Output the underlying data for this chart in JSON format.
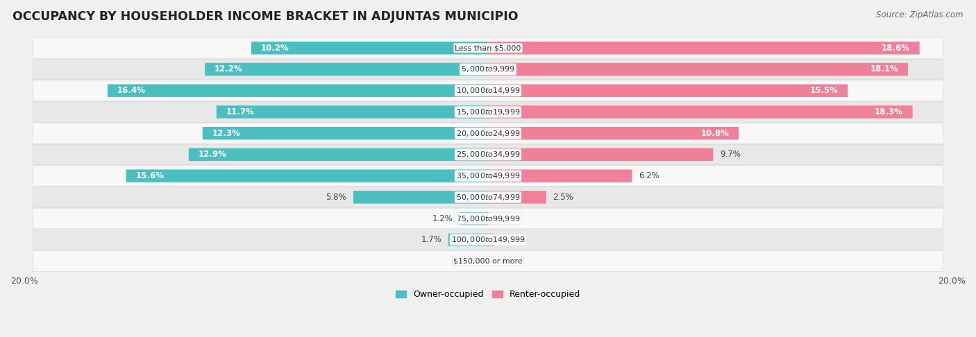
{
  "title": "OCCUPANCY BY HOUSEHOLDER INCOME BRACKET IN ADJUNTAS MUNICIPIO",
  "source": "Source: ZipAtlas.com",
  "categories": [
    "Less than $5,000",
    "$5,000 to $9,999",
    "$10,000 to $14,999",
    "$15,000 to $19,999",
    "$20,000 to $24,999",
    "$25,000 to $34,999",
    "$35,000 to $49,999",
    "$50,000 to $74,999",
    "$75,000 to $99,999",
    "$100,000 to $149,999",
    "$150,000 or more"
  ],
  "owner_values": [
    10.2,
    12.2,
    16.4,
    11.7,
    12.3,
    12.9,
    15.6,
    5.8,
    1.2,
    1.7,
    0.0
  ],
  "renter_values": [
    18.6,
    18.1,
    15.5,
    18.3,
    10.8,
    9.7,
    6.2,
    2.5,
    0.0,
    0.24,
    0.0
  ],
  "owner_color": "#4bbfbf",
  "renter_color": "#f08098",
  "owner_label": "Owner-occupied",
  "renter_label": "Renter-occupied",
  "xlim": 20.0,
  "bar_height": 0.58,
  "background_color": "#f0f0f0",
  "row_bg_light": "#f8f8f8",
  "row_bg_dark": "#e8e8e8",
  "title_fontsize": 12.5,
  "source_fontsize": 8.5,
  "label_fontsize": 9,
  "category_fontsize": 8,
  "value_fontsize": 8.5
}
